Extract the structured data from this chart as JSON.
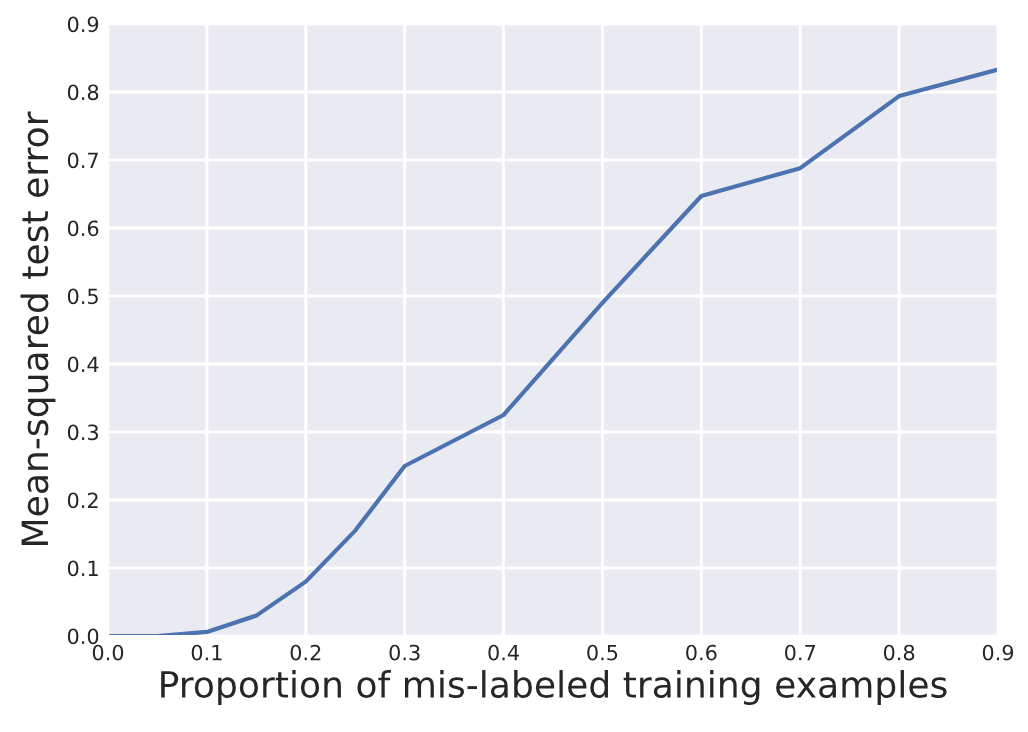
{
  "chart_data": {
    "type": "line",
    "xlabel": "Proportion of mis-labeled training examples",
    "ylabel": "Mean-squared test error",
    "x": [
      0,
      0.05,
      0.1,
      0.15,
      0.2,
      0.25,
      0.3,
      0.4,
      0.5,
      0.6,
      0.7,
      0.8,
      0.9
    ],
    "series": [
      {
        "color": "#4c72b0",
        "values": [
          0,
          0,
          0.006,
          0.03,
          0.08,
          0.155,
          0.25,
          0.325,
          0.49,
          0.647,
          0.688,
          0.794,
          0.833
        ]
      }
    ],
    "xlim": [
      0,
      0.9
    ],
    "ylim": [
      0,
      0.9
    ],
    "xticks": [
      {
        "value": 0,
        "label": "0.0"
      },
      0.1,
      0.2,
      0.3,
      0.4,
      0.5,
      0.6,
      0.7,
      0.8,
      0.9
    ],
    "yticks": [
      {
        "value": 0,
        "label": "0.0"
      },
      0.1,
      0.2,
      0.3,
      0.4,
      0.5,
      0.6,
      0.7,
      0.8,
      0.9
    ],
    "grid": true,
    "legend": false
  }
}
